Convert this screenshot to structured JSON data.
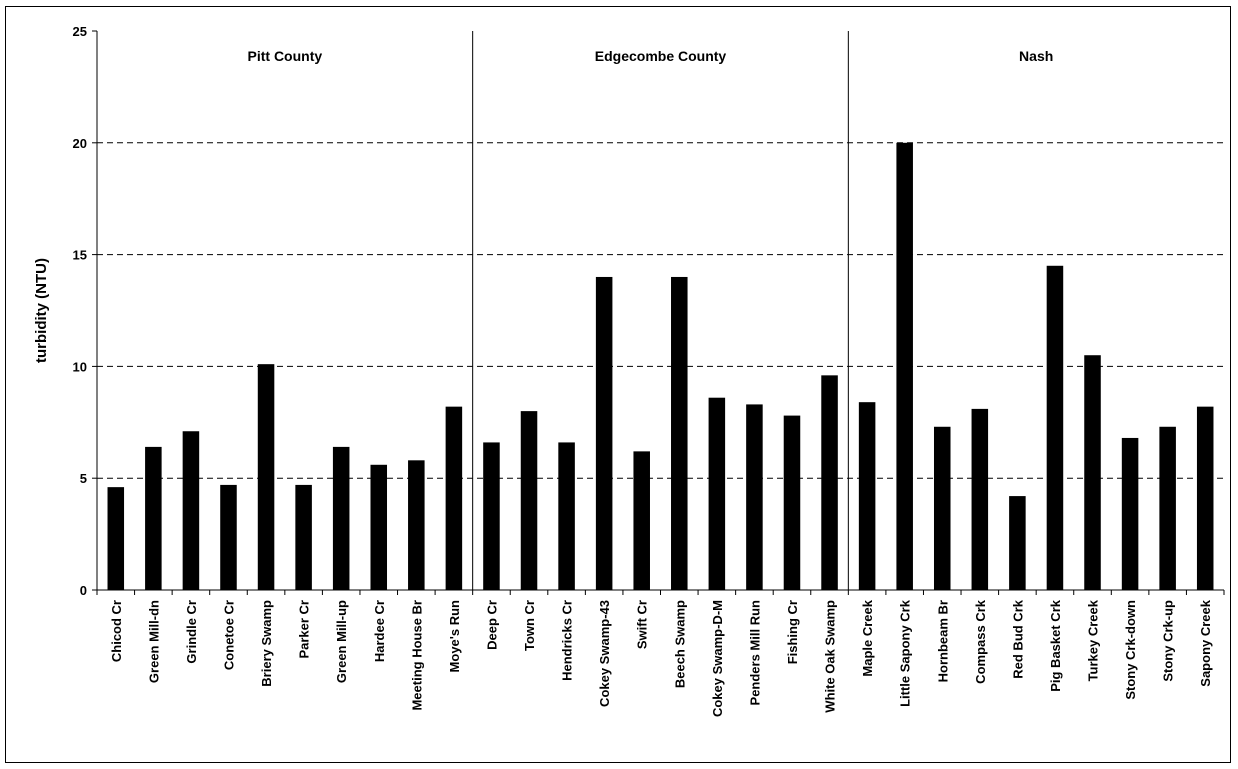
{
  "chart_data": {
    "type": "bar",
    "title": "",
    "xlabel": "",
    "ylabel": "turbidity (NTU)",
    "ylim": [
      0,
      25
    ],
    "yticks": [
      0,
      5,
      10,
      15,
      20,
      25
    ],
    "grid": "horizontal dashed",
    "legend": "none",
    "bar_color": "#000000",
    "groups": [
      {
        "label": "Pitt County",
        "categories": [
          "Chicod Cr",
          "Green Mill-dn",
          "Grindle Cr",
          "Conetoe Cr",
          "Briery Swamp",
          "Parker Cr",
          "Green Mill-up",
          "Hardee Cr",
          "Meeting House Br",
          "Moye's Run"
        ],
        "values": [
          4.6,
          6.4,
          7.1,
          4.7,
          10.1,
          4.7,
          6.4,
          5.6,
          5.8,
          8.2
        ]
      },
      {
        "label": "Edgecombe County",
        "categories": [
          "Deep Cr",
          "Town Cr",
          "Hendricks Cr",
          "Cokey Swamp-43",
          "Swift Cr",
          "Beech Swamp",
          "Cokey Swamp-D-M",
          "Penders Mill Run",
          "Fishing Cr",
          "White Oak Swamp"
        ],
        "values": [
          6.6,
          8.0,
          6.6,
          14.0,
          6.2,
          14.0,
          8.6,
          8.3,
          7.8,
          9.6
        ]
      },
      {
        "label": "Nash",
        "categories": [
          "Maple Creek",
          "Little Sapony Crk",
          "Hornbeam Br",
          "Compass Crk",
          "Red Bud Crk",
          "Pig Basket Crk",
          "Turkey Creek",
          "Stony Crk-down",
          "Stony Crk-up",
          "Sapony Creek"
        ],
        "values": [
          8.4,
          20.0,
          7.3,
          8.1,
          4.2,
          14.5,
          10.5,
          6.8,
          7.3,
          8.2
        ]
      }
    ]
  }
}
